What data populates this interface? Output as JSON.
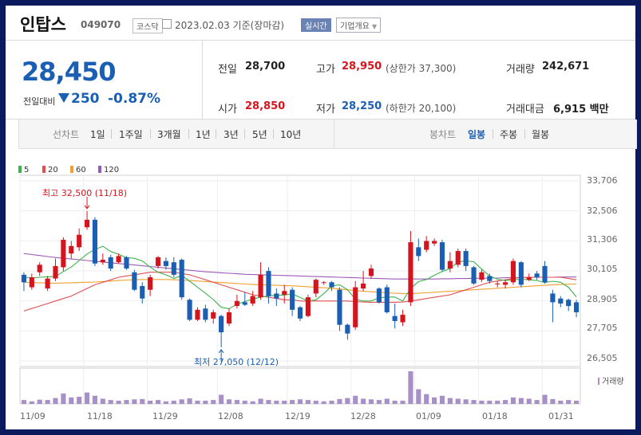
{
  "header": {
    "name": "인탑스",
    "code": "049070",
    "market": "코스닥",
    "date": "2023.02.03",
    "basis": "기준(장마감)",
    "realtime": "실시간",
    "company_info": "기업개요"
  },
  "quote": {
    "price": "28,450",
    "compare_label": "전일대비",
    "change": "250",
    "change_pct": "-0.87%",
    "prev_label": "전일",
    "prev": "28,700",
    "high_label": "고가",
    "high": "28,950",
    "upper_limit": "(상한가 37,300)",
    "volume_label": "거래량",
    "volume": "242,671",
    "open_label": "시가",
    "open": "28,850",
    "low_label": "저가",
    "low": "28,250",
    "lower_limit": "(하한가 20,100)",
    "value_label": "거래대금",
    "value": "6,915 백만"
  },
  "tabs": {
    "line_chart": "선차트",
    "periods": [
      "1일",
      "1주일",
      "3개월",
      "1년",
      "3년",
      "5년",
      "10년"
    ],
    "candle_chart": "봉차트",
    "candles": [
      "일봉",
      "주봉",
      "월봉"
    ],
    "selected_candle": "일봉"
  },
  "colors": {
    "up": "#d6141d",
    "down": "#1a5fb4",
    "ma5": "#3cb44b",
    "ma20": "#e05050",
    "ma60": "#f0a030",
    "ma120": "#9b59b6",
    "volume": "#a790c8"
  },
  "chart_data": {
    "type": "candlestick",
    "legend": [
      "5",
      "20",
      "60",
      "120"
    ],
    "y_ticks": [
      "33,706",
      "32,506",
      "31,306",
      "30,105",
      "28,905",
      "27,705",
      "26,505"
    ],
    "ylim": [
      26505,
      33706
    ],
    "x_ticks": [
      "11/09",
      "11/18",
      "11/29",
      "12/08",
      "12/19",
      "12/28",
      "01/09",
      "01/18",
      "01/31"
    ],
    "high_label": "최고 32,500 (11/18)",
    "low_label": "최저 27,050 (12/12)",
    "volume_label": "거래량",
    "candles": [
      {
        "o": 29950,
        "c": 29650,
        "h": 30050,
        "l": 29300
      },
      {
        "o": 29450,
        "c": 29850,
        "h": 30000,
        "l": 29350
      },
      {
        "o": 30050,
        "c": 30350,
        "h": 30450,
        "l": 29900
      },
      {
        "o": 29400,
        "c": 29800,
        "h": 29900,
        "l": 29300
      },
      {
        "o": 29800,
        "c": 30300,
        "h": 30600,
        "l": 29700
      },
      {
        "o": 30250,
        "c": 31350,
        "h": 31450,
        "l": 30100
      },
      {
        "o": 30800,
        "c": 31100,
        "h": 31300,
        "l": 30600
      },
      {
        "o": 31050,
        "c": 31550,
        "h": 31800,
        "l": 30900
      },
      {
        "o": 31850,
        "c": 32150,
        "h": 32500,
        "l": 31750
      },
      {
        "o": 32150,
        "c": 30400,
        "h": 32250,
        "l": 30300
      },
      {
        "o": 30450,
        "c": 30550,
        "h": 30800,
        "l": 30350
      },
      {
        "o": 30650,
        "c": 30200,
        "h": 30750,
        "l": 30100
      },
      {
        "o": 30450,
        "c": 30700,
        "h": 30800,
        "l": 30400
      },
      {
        "o": 30650,
        "c": 30200,
        "h": 30700,
        "l": 30150
      },
      {
        "o": 30050,
        "c": 29350,
        "h": 30150,
        "l": 29300
      },
      {
        "o": 29500,
        "c": 29000,
        "h": 29650,
        "l": 28800
      },
      {
        "o": 29350,
        "c": 29850,
        "h": 29950,
        "l": 29100
      },
      {
        "o": 30300,
        "c": 30650,
        "h": 30700,
        "l": 30200
      },
      {
        "o": 30500,
        "c": 30300,
        "h": 30650,
        "l": 30150
      },
      {
        "o": 30450,
        "c": 29950,
        "h": 30650,
        "l": 29850
      },
      {
        "o": 30550,
        "c": 29050,
        "h": 30600,
        "l": 28950
      },
      {
        "o": 28950,
        "c": 28150,
        "h": 29000,
        "l": 28100
      },
      {
        "o": 28150,
        "c": 28550,
        "h": 28650,
        "l": 28100
      },
      {
        "o": 28600,
        "c": 28150,
        "h": 28750,
        "l": 28050
      },
      {
        "o": 28200,
        "c": 28450,
        "h": 28550,
        "l": 28000
      },
      {
        "o": 28300,
        "c": 27650,
        "h": 28350,
        "l": 27050
      },
      {
        "o": 28000,
        "c": 28450,
        "h": 28600,
        "l": 27900
      },
      {
        "o": 28700,
        "c": 28900,
        "h": 29150,
        "l": 28600
      },
      {
        "o": 28850,
        "c": 28750,
        "h": 29250,
        "l": 28700
      },
      {
        "o": 28800,
        "c": 29100,
        "h": 29300,
        "l": 28700
      },
      {
        "o": 29050,
        "c": 29950,
        "h": 30450,
        "l": 28950
      },
      {
        "o": 30100,
        "c": 29100,
        "h": 30250,
        "l": 28800
      },
      {
        "o": 29200,
        "c": 29000,
        "h": 29400,
        "l": 28700
      },
      {
        "o": 29150,
        "c": 29300,
        "h": 29550,
        "l": 28800
      },
      {
        "o": 29350,
        "c": 28550,
        "h": 29450,
        "l": 28300
      },
      {
        "o": 28650,
        "c": 28200,
        "h": 28700,
        "l": 28100
      },
      {
        "o": 28300,
        "c": 29050,
        "h": 29150,
        "l": 28250
      },
      {
        "o": 29200,
        "c": 29750,
        "h": 29800,
        "l": 29050
      },
      {
        "o": 29650,
        "c": 29650,
        "h": 29700,
        "l": 29550
      },
      {
        "o": 29650,
        "c": 29450,
        "h": 29700,
        "l": 29300
      },
      {
        "o": 29350,
        "c": 27950,
        "h": 29450,
        "l": 27700
      },
      {
        "o": 27950,
        "c": 27600,
        "h": 28000,
        "l": 27350
      },
      {
        "o": 27850,
        "c": 29450,
        "h": 29700,
        "l": 27750
      },
      {
        "o": 29400,
        "c": 29600,
        "h": 30100,
        "l": 29300
      },
      {
        "o": 29900,
        "c": 30200,
        "h": 30350,
        "l": 29800
      },
      {
        "o": 29400,
        "c": 28850,
        "h": 29450,
        "l": 28800
      },
      {
        "o": 29450,
        "c": 28450,
        "h": 29550,
        "l": 28400
      },
      {
        "o": 28300,
        "c": 28100,
        "h": 28800,
        "l": 27800
      },
      {
        "o": 28050,
        "c": 28350,
        "h": 28550,
        "l": 27900
      },
      {
        "o": 28850,
        "c": 31250,
        "h": 31700,
        "l": 28700
      },
      {
        "o": 31050,
        "c": 30700,
        "h": 31400,
        "l": 30500
      },
      {
        "o": 30950,
        "c": 31300,
        "h": 31500,
        "l": 30850
      },
      {
        "o": 31200,
        "c": 31300,
        "h": 31400,
        "l": 31100
      },
      {
        "o": 31250,
        "c": 30150,
        "h": 31350,
        "l": 30100
      },
      {
        "o": 30200,
        "c": 30500,
        "h": 30850,
        "l": 30050
      },
      {
        "o": 30350,
        "c": 30900,
        "h": 31000,
        "l": 30250
      },
      {
        "o": 30900,
        "c": 30300,
        "h": 31000,
        "l": 30100
      },
      {
        "o": 30250,
        "c": 29600,
        "h": 30300,
        "l": 29550
      },
      {
        "o": 29750,
        "c": 30050,
        "h": 30150,
        "l": 29650
      },
      {
        "o": 29900,
        "c": 29700,
        "h": 30000,
        "l": 29600
      },
      {
        "o": 29600,
        "c": 29600,
        "h": 29700,
        "l": 29450
      },
      {
        "o": 29550,
        "c": 29650,
        "h": 29750,
        "l": 29400
      },
      {
        "o": 29650,
        "c": 30500,
        "h": 30600,
        "l": 29550
      },
      {
        "o": 30450,
        "c": 29550,
        "h": 30500,
        "l": 29450
      },
      {
        "o": 29750,
        "c": 29850,
        "h": 30000,
        "l": 29700
      },
      {
        "o": 30000,
        "c": 29850,
        "h": 30100,
        "l": 29750
      },
      {
        "o": 30300,
        "c": 29650,
        "h": 30500,
        "l": 29600
      },
      {
        "o": 29200,
        "c": 28850,
        "h": 29350,
        "l": 28050
      },
      {
        "o": 29000,
        "c": 28800,
        "h": 29100,
        "l": 28650
      },
      {
        "o": 28950,
        "c": 28700,
        "h": 29000,
        "l": 28500
      },
      {
        "o": 28850,
        "c": 28450,
        "h": 28950,
        "l": 28250
      }
    ],
    "ma5": [
      29850,
      29820,
      29850,
      29870,
      29880,
      30080,
      30260,
      30520,
      30780,
      30960,
      31090,
      30880,
      30770,
      30630,
      30610,
      30500,
      30260,
      30050,
      29950,
      29800,
      29920,
      29690,
      29450,
      29210,
      28960,
      28650,
      28590,
      28780,
      28880,
      28980,
      29050,
      29100,
      29130,
      29140,
      29180,
      29040,
      28900,
      28950,
      29200,
      29500,
      29550,
      29350,
      28970,
      28900,
      28900,
      29030,
      29060,
      29060,
      28900,
      29400,
      29680,
      29760,
      29930,
      30080,
      30200,
      30460,
      30510,
      30470,
      30180,
      29900,
      29770,
      29720,
      29750,
      29770,
      29750,
      29720,
      29640,
      29690,
      29650,
      29450,
      29060
    ],
    "ma20": [
      28500,
      28600,
      28700,
      28800,
      28900,
      29000,
      29100,
      29250,
      29400,
      29550,
      29650,
      29750,
      29850,
      29900,
      29950,
      30000,
      30050,
      30050,
      30050,
      30050,
      30000,
      29950,
      29850,
      29750,
      29650,
      29550,
      29450,
      29350,
      29250,
      29150,
      29100,
      29050,
      29000,
      28950,
      28950,
      28900,
      28900,
      28900,
      28900,
      28900,
      28900,
      28900,
      28880,
      28860,
      28850,
      28850,
      28850,
      28850,
      28860,
      28900,
      28950,
      29000,
      29050,
      29100,
      29150,
      29250,
      29350,
      29450,
      29550,
      29650,
      29700,
      29750,
      29800,
      29850,
      29850,
      29850,
      29850,
      29850,
      29850,
      29800,
      29750
    ],
    "ma60": [
      29650,
      29640,
      29630,
      29620,
      29610,
      29620,
      29630,
      29640,
      29650,
      29660,
      29680,
      29700,
      29720,
      29740,
      29750,
      29760,
      29760,
      29760,
      29760,
      29750,
      29740,
      29720,
      29700,
      29680,
      29660,
      29640,
      29620,
      29600,
      29580,
      29560,
      29550,
      29540,
      29530,
      29520,
      29510,
      29490,
      29470,
      29450,
      29430,
      29410,
      29380,
      29350,
      29320,
      29290,
      29270,
      29250,
      29230,
      29210,
      29200,
      29200,
      29210,
      29230,
      29250,
      29270,
      29290,
      29310,
      29330,
      29350,
      29370,
      29390,
      29410,
      29430,
      29450,
      29470,
      29490,
      29510,
      29530,
      29550,
      29560,
      29570,
      29580
    ],
    "ma120": [
      30800,
      30760,
      30720,
      30680,
      30640,
      30610,
      30580,
      30550,
      30520,
      30490,
      30460,
      30430,
      30400,
      30370,
      30340,
      30310,
      30280,
      30250,
      30220,
      30190,
      30160,
      30130,
      30100,
      30070,
      30050,
      30030,
      30010,
      29990,
      29970,
      29960,
      29950,
      29940,
      29930,
      29920,
      29910,
      29900,
      29890,
      29880,
      29870,
      29860,
      29850,
      29840,
      29830,
      29820,
      29810,
      29800,
      29790,
      29780,
      29780,
      29780,
      29780,
      29780,
      29780,
      29790,
      29790,
      29800,
      29800,
      29810,
      29810,
      29820,
      29820,
      29830,
      29830,
      29840,
      29840,
      29850,
      29850,
      29850,
      29860,
      29860,
      29860
    ],
    "volume": [
      0.12,
      0.08,
      0.13,
      0.12,
      0.18,
      0.32,
      0.2,
      0.22,
      0.35,
      0.25,
      0.16,
      0.12,
      0.1,
      0.12,
      0.14,
      0.15,
      0.1,
      0.12,
      0.08,
      0.1,
      0.14,
      0.17,
      0.1,
      0.1,
      0.12,
      0.28,
      0.14,
      0.12,
      0.1,
      0.08,
      0.16,
      0.12,
      0.1,
      0.1,
      0.12,
      0.14,
      0.12,
      0.1,
      0.08,
      0.1,
      0.15,
      0.18,
      0.25,
      0.16,
      0.14,
      0.12,
      0.16,
      0.1,
      0.1,
      1.0,
      0.45,
      0.3,
      0.2,
      0.25,
      0.18,
      0.16,
      0.14,
      0.12,
      0.1,
      0.1,
      0.1,
      0.12,
      0.2,
      0.18,
      0.16,
      0.12,
      0.28,
      0.15,
      0.1,
      0.12,
      0.1
    ]
  }
}
